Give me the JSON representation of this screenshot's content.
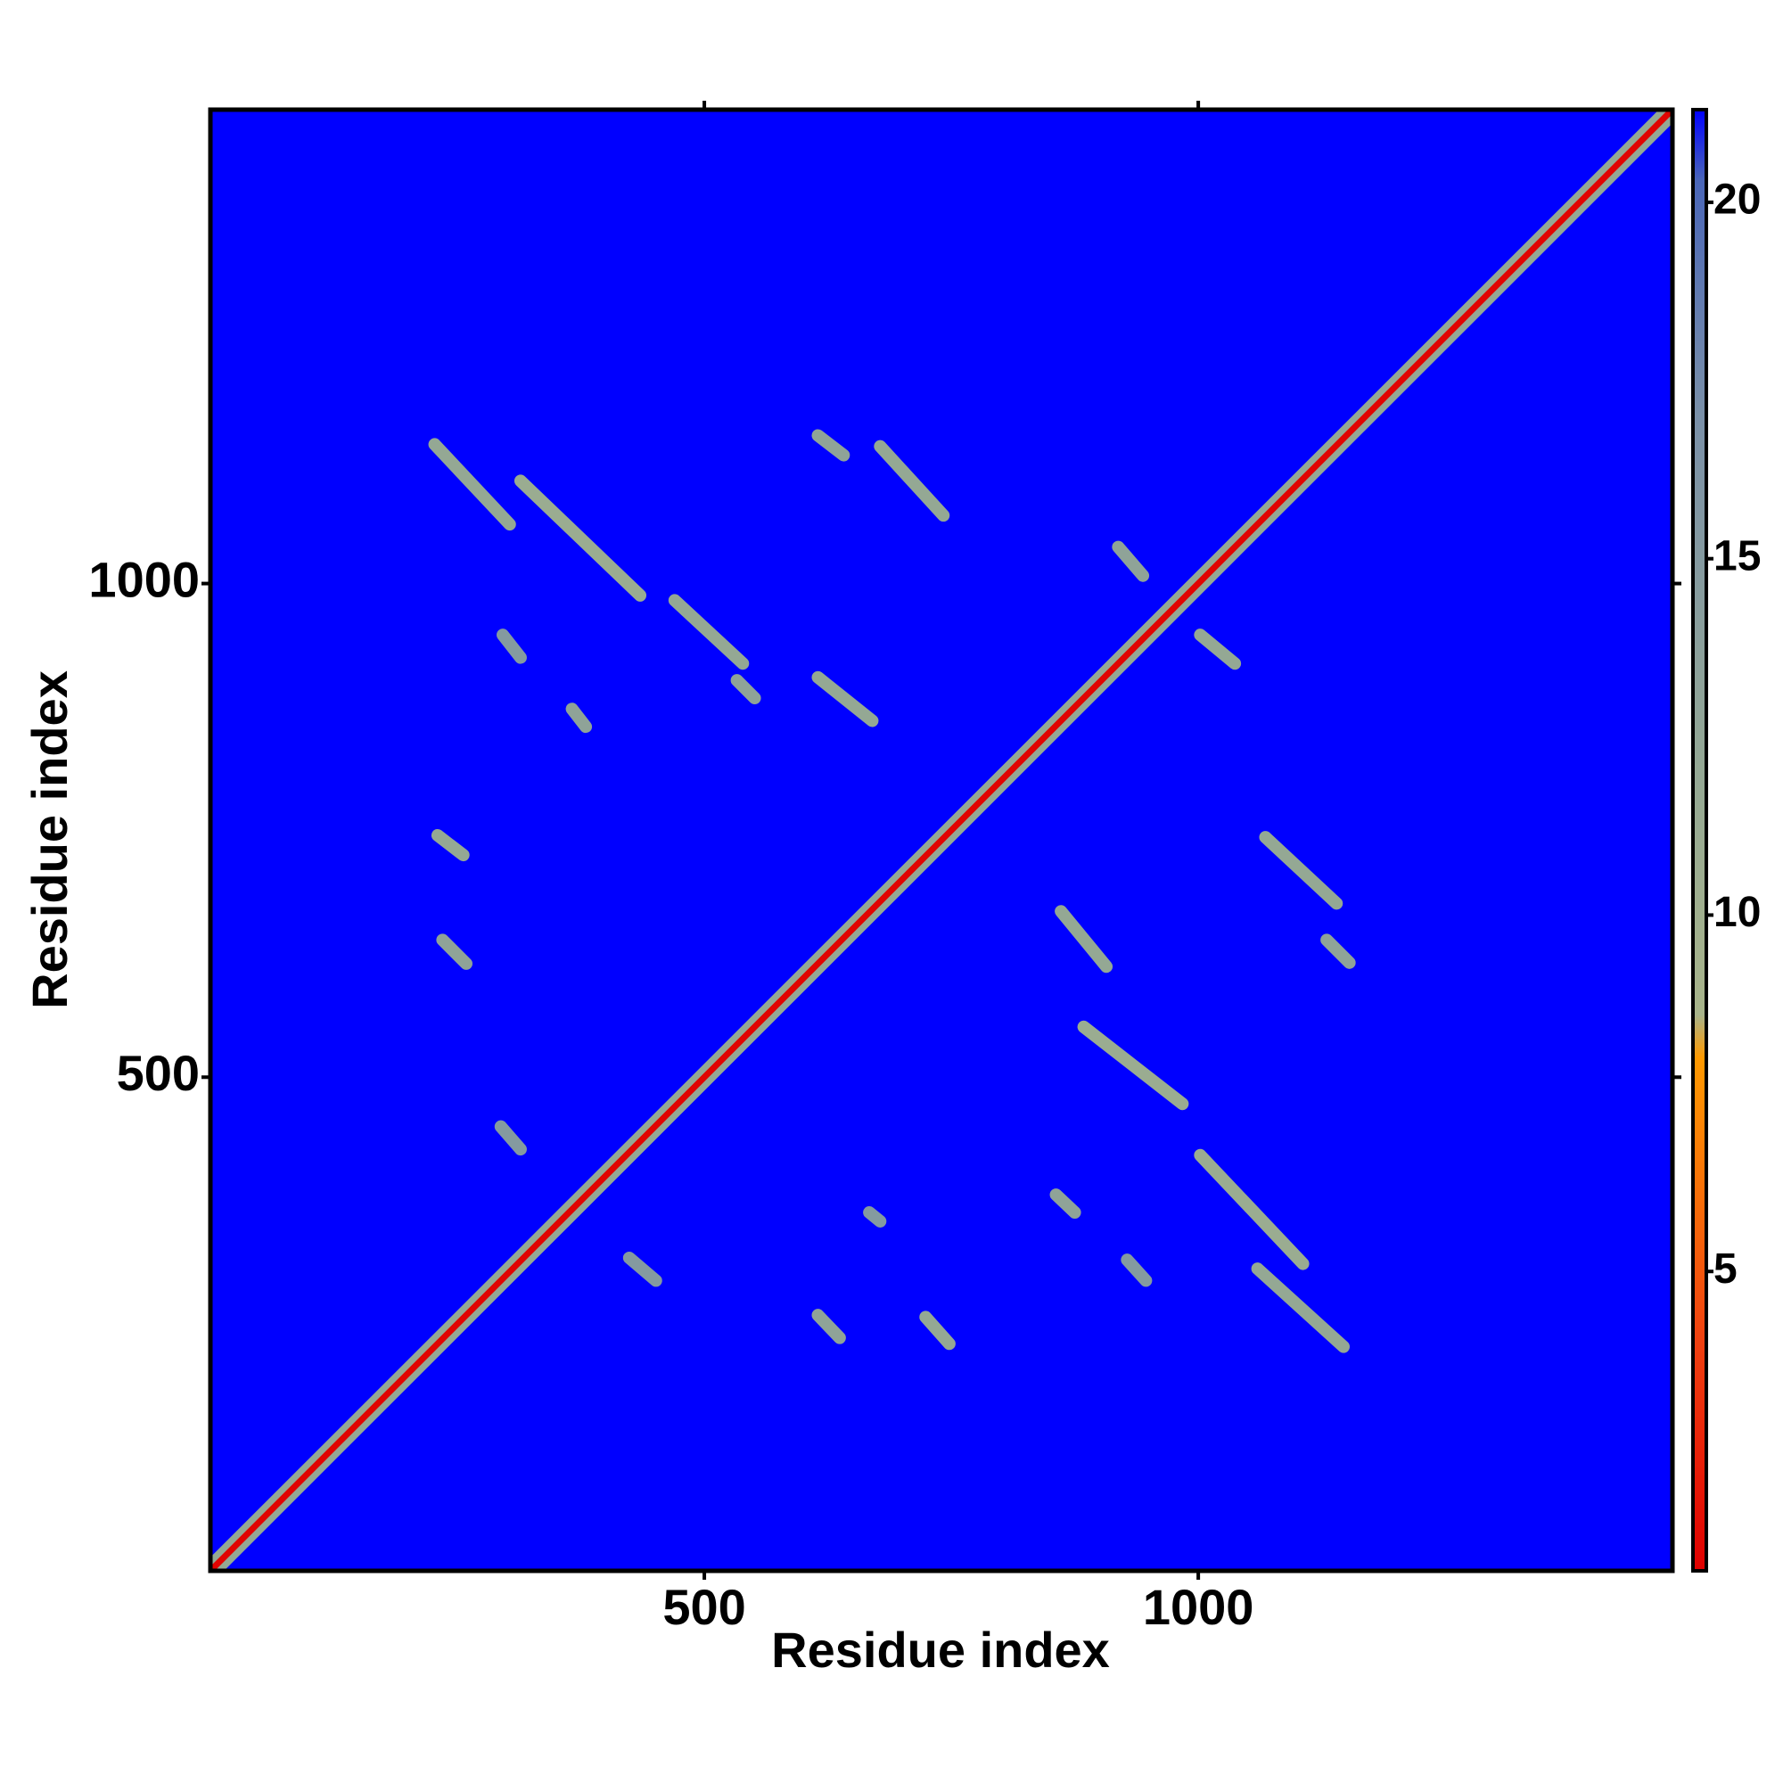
{
  "chart_data": {
    "type": "heatmap",
    "xlabel": "Residue index",
    "ylabel": "Residue index",
    "xlim": [
      0,
      1480
    ],
    "ylim": [
      0,
      1480
    ],
    "xticks": [
      500,
      1000
    ],
    "yticks": [
      500,
      1000
    ],
    "zlim": [
      0.8,
      21.3
    ],
    "zticks": [
      5,
      10,
      15,
      20
    ],
    "colormap": [
      {
        "value": 0.8,
        "color": "#e00000"
      },
      {
        "value": 4,
        "color": "#f04010"
      },
      {
        "value": 8,
        "color": "#ff9a00"
      },
      {
        "value": 8.6,
        "color": "#a8b48a"
      },
      {
        "value": 12,
        "color": "#94a894"
      },
      {
        "value": 17,
        "color": "#7a90a8"
      },
      {
        "value": 20.3,
        "color": "#4a66b8"
      },
      {
        "value": 21.3,
        "color": "#0000ff"
      }
    ],
    "segments": [
      {
        "x": [
          0,
          1472
        ],
        "y": [
          8,
          1480
        ],
        "value": 12
      },
      {
        "x": [
          8,
          1480
        ],
        "y": [
          0,
          1472
        ],
        "value": 12
      },
      {
        "x": [
          0,
          1480
        ],
        "y": [
          0,
          1480
        ],
        "value": 1
      },
      {
        "x": [
          227,
          303
        ],
        "y": [
          1141,
          1060
        ],
        "value": 12
      },
      {
        "x": [
          314,
          435
        ],
        "y": [
          1104,
          988
        ],
        "value": 11
      },
      {
        "x": [
          470,
          539
        ],
        "y": [
          983,
          919
        ],
        "value": 12
      },
      {
        "x": [
          533,
          551
        ],
        "y": [
          902,
          884
        ],
        "value": 13
      },
      {
        "x": [
          615,
          641
        ],
        "y": [
          1150,
          1130
        ],
        "value": 13
      },
      {
        "x": [
          678,
          742
        ],
        "y": [
          1139,
          1069
        ],
        "value": 12
      },
      {
        "x": [
          615,
          670
        ],
        "y": [
          905,
          861
        ],
        "value": 12
      },
      {
        "x": [
          366,
          380
        ],
        "y": [
          873,
          855
        ],
        "value": 13
      },
      {
        "x": [
          230,
          256
        ],
        "y": [
          745,
          725
        ],
        "value": 12
      },
      {
        "x": [
          235,
          259
        ],
        "y": [
          639,
          615
        ],
        "value": 13
      },
      {
        "x": [
          919,
          944
        ],
        "y": [
          1037,
          1008
        ],
        "value": 13
      },
      {
        "x": [
          1002,
          1037
        ],
        "y": [
          948,
          919
        ],
        "value": 12
      },
      {
        "x": [
          296,
          314
        ],
        "y": [
          948,
          925
        ],
        "value": 15
      },
      {
        "x": [
          1068,
          1140
        ],
        "y": [
          743,
          676
        ],
        "value": 12
      },
      {
        "x": [
          1130,
          1153
        ],
        "y": [
          639,
          616
        ],
        "value": 13
      },
      {
        "x": [
          861,
          907
        ],
        "y": [
          668,
          612
        ],
        "value": 12
      },
      {
        "x": [
          884,
          984
        ],
        "y": [
          551,
          473
        ],
        "value": 11
      },
      {
        "x": [
          1002,
          1106
        ],
        "y": [
          421,
          311
        ],
        "value": 11
      },
      {
        "x": [
          1060,
          1147
        ],
        "y": [
          306,
          227
        ],
        "value": 12
      },
      {
        "x": [
          615,
          637
        ],
        "y": [
          259,
          236
        ],
        "value": 13
      },
      {
        "x": [
          724,
          748
        ],
        "y": [
          257,
          230
        ],
        "value": 12
      },
      {
        "x": [
          856,
          875
        ],
        "y": [
          381,
          363
        ],
        "value": 13
      },
      {
        "x": [
          667,
          678
        ],
        "y": [
          363,
          354
        ],
        "value": 15
      },
      {
        "x": [
          424,
          451
        ],
        "y": [
          317,
          294
        ],
        "value": 15
      },
      {
        "x": [
          928,
          947
        ],
        "y": [
          315,
          294
        ],
        "value": 15
      },
      {
        "x": [
          294,
          314
        ],
        "y": [
          450,
          427
        ],
        "value": 15
      }
    ]
  }
}
